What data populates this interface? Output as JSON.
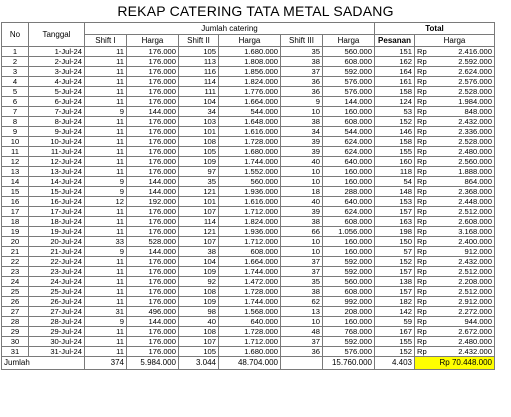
{
  "title": "REKAP CATERING TATA METAL SADANG",
  "headers": {
    "no": "No",
    "tanggal": "Tanggal",
    "jumlah_catering": "Jumlah catering",
    "total": "Total",
    "shift1": "Shift I",
    "harga1": "Harga",
    "shift2": "Shift II",
    "harga2": "Harga",
    "shift3": "Shift III",
    "harga3": "Harga",
    "pesanan": "Pesanan",
    "harga_total": "Harga"
  },
  "currency": "Rp",
  "rows": [
    {
      "no": "1",
      "tanggal": "1-Jul-24",
      "s1": "11",
      "h1": "176.000",
      "s2": "105",
      "h2": "1.680.000",
      "s3": "35",
      "h3": "560.000",
      "p": "151",
      "t": "2.416.000"
    },
    {
      "no": "2",
      "tanggal": "2-Jul-24",
      "s1": "11",
      "h1": "176.000",
      "s2": "113",
      "h2": "1.808.000",
      "s3": "38",
      "h3": "608.000",
      "p": "162",
      "t": "2.592.000"
    },
    {
      "no": "3",
      "tanggal": "3-Jul-24",
      "s1": "11",
      "h1": "176.000",
      "s2": "116",
      "h2": "1.856.000",
      "s3": "37",
      "h3": "592.000",
      "p": "164",
      "t": "2.624.000"
    },
    {
      "no": "4",
      "tanggal": "4-Jul-24",
      "s1": "11",
      "h1": "176.000",
      "s2": "114",
      "h2": "1.824.000",
      "s3": "36",
      "h3": "576.000",
      "p": "161",
      "t": "2.576.000"
    },
    {
      "no": "5",
      "tanggal": "5-Jul-24",
      "s1": "11",
      "h1": "176.000",
      "s2": "111",
      "h2": "1.776.000",
      "s3": "36",
      "h3": "576.000",
      "p": "158",
      "t": "2.528.000"
    },
    {
      "no": "6",
      "tanggal": "6-Jul-24",
      "s1": "11",
      "h1": "176.000",
      "s2": "104",
      "h2": "1.664.000",
      "s3": "9",
      "h3": "144.000",
      "p": "124",
      "t": "1.984.000"
    },
    {
      "no": "7",
      "tanggal": "7-Jul-24",
      "s1": "9",
      "h1": "144.000",
      "s2": "34",
      "h2": "544.000",
      "s3": "10",
      "h3": "160.000",
      "p": "53",
      "t": "848.000"
    },
    {
      "no": "8",
      "tanggal": "8-Jul-24",
      "s1": "11",
      "h1": "176.000",
      "s2": "103",
      "h2": "1.648.000",
      "s3": "38",
      "h3": "608.000",
      "p": "152",
      "t": "2.432.000"
    },
    {
      "no": "9",
      "tanggal": "9-Jul-24",
      "s1": "11",
      "h1": "176.000",
      "s2": "101",
      "h2": "1.616.000",
      "s3": "34",
      "h3": "544.000",
      "p": "146",
      "t": "2.336.000"
    },
    {
      "no": "10",
      "tanggal": "10-Jul-24",
      "s1": "11",
      "h1": "176.000",
      "s2": "108",
      "h2": "1.728.000",
      "s3": "39",
      "h3": "624.000",
      "p": "158",
      "t": "2.528.000"
    },
    {
      "no": "11",
      "tanggal": "11-Jul-24",
      "s1": "11",
      "h1": "176.000",
      "s2": "105",
      "h2": "1.680.000",
      "s3": "39",
      "h3": "624.000",
      "p": "155",
      "t": "2.480.000"
    },
    {
      "no": "12",
      "tanggal": "12-Jul-24",
      "s1": "11",
      "h1": "176.000",
      "s2": "109",
      "h2": "1.744.000",
      "s3": "40",
      "h3": "640.000",
      "p": "160",
      "t": "2.560.000"
    },
    {
      "no": "13",
      "tanggal": "13-Jul-24",
      "s1": "11",
      "h1": "176.000",
      "s2": "97",
      "h2": "1.552.000",
      "s3": "10",
      "h3": "160.000",
      "p": "118",
      "t": "1.888.000"
    },
    {
      "no": "14",
      "tanggal": "14-Jul-24",
      "s1": "9",
      "h1": "144.000",
      "s2": "35",
      "h2": "560.000",
      "s3": "10",
      "h3": "160.000",
      "p": "54",
      "t": "864.000"
    },
    {
      "no": "15",
      "tanggal": "15-Jul-24",
      "s1": "9",
      "h1": "144.000",
      "s2": "121",
      "h2": "1.936.000",
      "s3": "18",
      "h3": "288.000",
      "p": "148",
      "t": "2.368.000"
    },
    {
      "no": "16",
      "tanggal": "16-Jul-24",
      "s1": "12",
      "h1": "192.000",
      "s2": "101",
      "h2": "1.616.000",
      "s3": "40",
      "h3": "640.000",
      "p": "153",
      "t": "2.448.000"
    },
    {
      "no": "17",
      "tanggal": "17-Jul-24",
      "s1": "11",
      "h1": "176.000",
      "s2": "107",
      "h2": "1.712.000",
      "s3": "39",
      "h3": "624.000",
      "p": "157",
      "t": "2.512.000"
    },
    {
      "no": "18",
      "tanggal": "18-Jul-24",
      "s1": "11",
      "h1": "176.000",
      "s2": "114",
      "h2": "1.824.000",
      "s3": "38",
      "h3": "608.000",
      "p": "163",
      "t": "2.608.000"
    },
    {
      "no": "19",
      "tanggal": "19-Jul-24",
      "s1": "11",
      "h1": "176.000",
      "s2": "121",
      "h2": "1.936.000",
      "s3": "66",
      "h3": "1.056.000",
      "p": "198",
      "t": "3.168.000"
    },
    {
      "no": "20",
      "tanggal": "20-Jul-24",
      "s1": "33",
      "h1": "528.000",
      "s2": "107",
      "h2": "1.712.000",
      "s3": "10",
      "h3": "160.000",
      "p": "150",
      "t": "2.400.000"
    },
    {
      "no": "21",
      "tanggal": "21-Jul-24",
      "s1": "9",
      "h1": "144.000",
      "s2": "38",
      "h2": "608.000",
      "s3": "10",
      "h3": "160.000",
      "p": "57",
      "t": "912.000"
    },
    {
      "no": "22",
      "tanggal": "22-Jul-24",
      "s1": "11",
      "h1": "176.000",
      "s2": "104",
      "h2": "1.664.000",
      "s3": "37",
      "h3": "592.000",
      "p": "152",
      "t": "2.432.000"
    },
    {
      "no": "23",
      "tanggal": "23-Jul-24",
      "s1": "11",
      "h1": "176.000",
      "s2": "109",
      "h2": "1.744.000",
      "s3": "37",
      "h3": "592.000",
      "p": "157",
      "t": "2.512.000"
    },
    {
      "no": "24",
      "tanggal": "24-Jul-24",
      "s1": "11",
      "h1": "176.000",
      "s2": "92",
      "h2": "1.472.000",
      "s3": "35",
      "h3": "560.000",
      "p": "138",
      "t": "2.208.000"
    },
    {
      "no": "25",
      "tanggal": "25-Jul-24",
      "s1": "11",
      "h1": "176.000",
      "s2": "108",
      "h2": "1.728.000",
      "s3": "38",
      "h3": "608.000",
      "p": "157",
      "t": "2.512.000"
    },
    {
      "no": "26",
      "tanggal": "26-Jul-24",
      "s1": "11",
      "h1": "176.000",
      "s2": "109",
      "h2": "1.744.000",
      "s3": "62",
      "h3": "992.000",
      "p": "182",
      "t": "2.912.000"
    },
    {
      "no": "27",
      "tanggal": "27-Jul-24",
      "s1": "31",
      "h1": "496.000",
      "s2": "98",
      "h2": "1.568.000",
      "s3": "13",
      "h3": "208.000",
      "p": "142",
      "t": "2.272.000"
    },
    {
      "no": "28",
      "tanggal": "28-Jul-24",
      "s1": "9",
      "h1": "144.000",
      "s2": "40",
      "h2": "640.000",
      "s3": "10",
      "h3": "160.000",
      "p": "59",
      "t": "944.000"
    },
    {
      "no": "29",
      "tanggal": "29-Jul-24",
      "s1": "11",
      "h1": "176.000",
      "s2": "108",
      "h2": "1.728.000",
      "s3": "48",
      "h3": "768.000",
      "p": "167",
      "t": "2.672.000"
    },
    {
      "no": "30",
      "tanggal": "30-Jul-24",
      "s1": "11",
      "h1": "176.000",
      "s2": "107",
      "h2": "1.712.000",
      "s3": "37",
      "h3": "592.000",
      "p": "155",
      "t": "2.480.000"
    },
    {
      "no": "31",
      "tanggal": "31-Jul-24",
      "s1": "11",
      "h1": "176.000",
      "s2": "105",
      "h2": "1.680.000",
      "s3": "36",
      "h3": "576.000",
      "p": "152",
      "t": "2.432.000"
    }
  ],
  "totals": {
    "label": "Jumlah",
    "s1": "374",
    "h1": "5.984.000",
    "s2": "3.044",
    "h2": "48.704.000",
    "s3": "",
    "h3": "15.760.000",
    "p": "4.403",
    "t": "Rp 70.448.000"
  },
  "colors": {
    "highlight": "#ffff00",
    "border": "#7a7a7a"
  }
}
